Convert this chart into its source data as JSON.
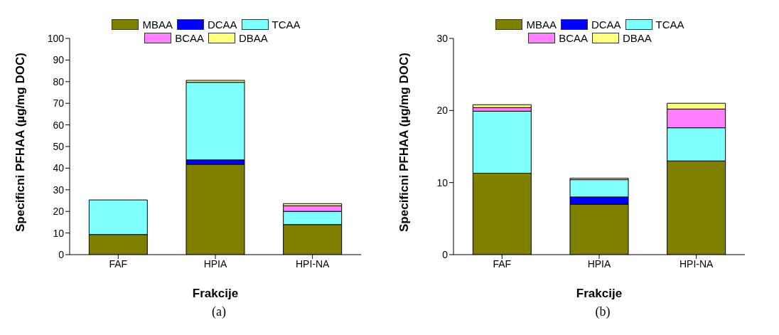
{
  "chart_data": [
    {
      "type": "bar",
      "stacked": true,
      "categories": [
        "FAF",
        "HPIA",
        "HPI-NA"
      ],
      "xlabel": "Frakcije",
      "ylabel": "Specificni PFHAA (µg/mg DOC)",
      "ylim": [
        0,
        100
      ],
      "yticks": [
        0,
        10,
        20,
        30,
        40,
        50,
        60,
        70,
        80,
        90,
        100
      ],
      "legend": "top",
      "annotations": [
        "(a)"
      ],
      "series": [
        {
          "name": "MBAA",
          "color": "#808000",
          "values": [
            9.3,
            41.8,
            13.9
          ]
        },
        {
          "name": "DCAA",
          "color": "#0000ff",
          "values": [
            null,
            2.0,
            0
          ]
        },
        {
          "name": "TCAA",
          "color": "#80ffff",
          "values": [
            16.0,
            35.9,
            6.1
          ]
        },
        {
          "name": "BCAA",
          "color": "#ff80ff",
          "values": [
            0,
            null,
            2.6
          ]
        },
        {
          "name": "DBAA",
          "color": "#ffff80",
          "values": [
            null,
            0.9,
            1.0
          ]
        }
      ]
    },
    {
      "type": "bar",
      "stacked": true,
      "categories": [
        "FAF",
        "HPIA",
        "HPI-NA"
      ],
      "xlabel": "Frakcije",
      "ylabel": "Specificni PFHAA (µg/mg DOC)",
      "ylim": [
        0,
        30
      ],
      "yticks": [
        0,
        10,
        20,
        30
      ],
      "legend": "top",
      "annotations": [
        "(b)"
      ],
      "series": [
        {
          "name": "MBAA",
          "color": "#808000",
          "values": [
            11.3,
            7.0,
            13.0
          ]
        },
        {
          "name": "DCAA",
          "color": "#0000ff",
          "values": [
            0,
            1.0,
            0
          ]
        },
        {
          "name": "TCAA",
          "color": "#80ffff",
          "values": [
            8.6,
            2.4,
            4.6
          ]
        },
        {
          "name": "BCAA",
          "color": "#ff80ff",
          "values": [
            0.5,
            null,
            2.6
          ]
        },
        {
          "name": "DBAA",
          "color": "#ffff80",
          "values": [
            0.4,
            0.2,
            0.8
          ]
        }
      ]
    }
  ]
}
